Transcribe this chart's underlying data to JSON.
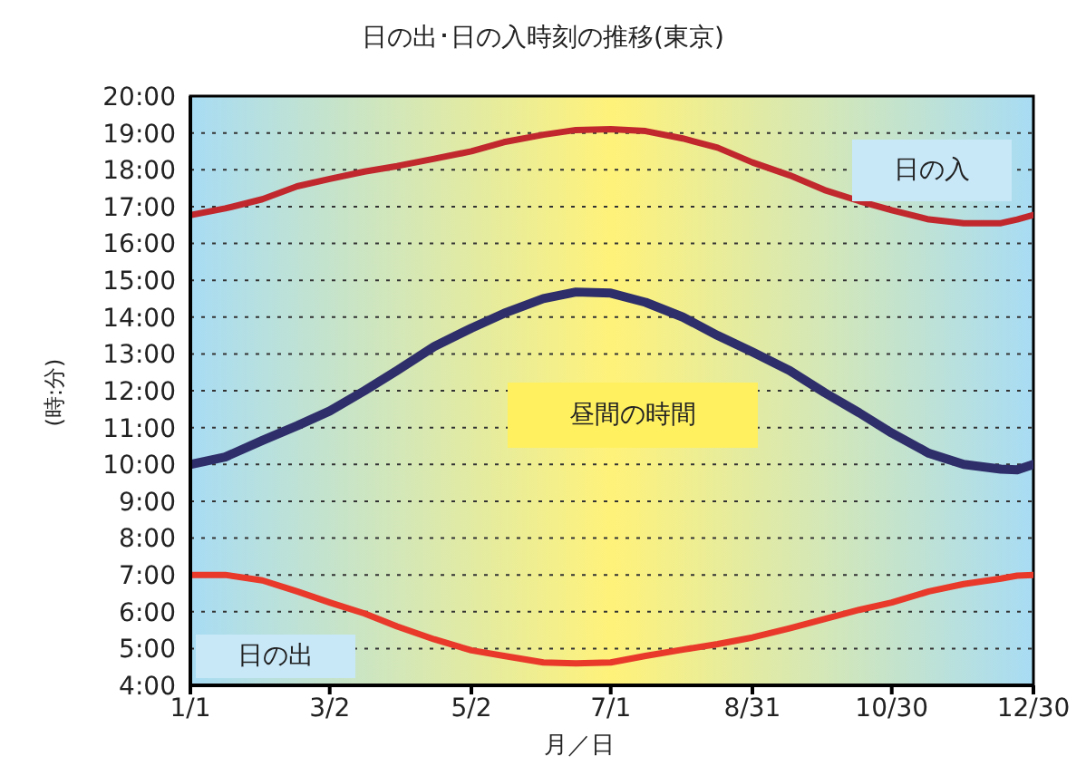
{
  "chart_data": {
    "type": "line",
    "title": "日の出･日の入時刻の推移(東京)",
    "xlabel": "月／日",
    "ylabel": "(時:分)",
    "x": [
      "--01-01",
      "--01-16",
      "--02-01",
      "--02-16",
      "--03-02",
      "--03-17",
      "--03-31",
      "--04-16",
      "--05-02",
      "--05-16",
      "--06-02",
      "--06-16",
      "--07-01",
      "--07-16",
      "--08-01",
      "--08-16",
      "--08-31",
      "--09-16",
      "--10-01",
      "--10-16",
      "--10-30",
      "--11-15",
      "--11-30",
      "--12-16",
      "--12-23",
      "--12-30"
    ],
    "series": [
      {
        "name": "日の入",
        "color": "#c0282e",
        "values": [
          16.77,
          16.95,
          17.2,
          17.55,
          17.75,
          17.95,
          18.1,
          18.3,
          18.5,
          18.75,
          18.95,
          19.08,
          19.1,
          19.05,
          18.85,
          18.6,
          18.2,
          17.85,
          17.45,
          17.15,
          16.9,
          16.65,
          16.55,
          16.55,
          16.65,
          16.77
        ]
      },
      {
        "name": "昼間の時間",
        "color": "#2e2e6a",
        "values": [
          10.0,
          10.2,
          10.65,
          11.05,
          11.45,
          12.0,
          12.55,
          13.2,
          13.7,
          14.1,
          14.5,
          14.68,
          14.65,
          14.4,
          14.0,
          13.5,
          13.05,
          12.55,
          11.95,
          11.4,
          10.85,
          10.3,
          10.0,
          9.87,
          9.85,
          10.0
        ]
      },
      {
        "name": "日の出",
        "color": "#e8392a",
        "values": [
          7.0,
          7.0,
          6.85,
          6.55,
          6.25,
          5.95,
          5.6,
          5.25,
          4.95,
          4.8,
          4.62,
          4.6,
          4.62,
          4.8,
          4.97,
          5.12,
          5.3,
          5.55,
          5.8,
          6.05,
          6.25,
          6.55,
          6.75,
          6.9,
          6.98,
          7.0
        ]
      }
    ],
    "xlim": [
      "--01-01",
      "--12-30"
    ],
    "xticks": [
      {
        "value": "--01-01",
        "label": "1/1"
      },
      {
        "value": "--03-02",
        "label": "3/2"
      },
      {
        "value": "--05-02",
        "label": "5/2"
      },
      {
        "value": "--07-01",
        "label": "7/1"
      },
      {
        "value": "--08-31",
        "label": "8/31"
      },
      {
        "value": "--10-30",
        "label": "10/30"
      },
      {
        "value": "--12-30",
        "label": "12/30"
      }
    ],
    "ylim": [
      4,
      20
    ],
    "yticks": [
      {
        "value": 4,
        "label": "4:00"
      },
      {
        "value": 5,
        "label": "5:00"
      },
      {
        "value": 6,
        "label": "6:00"
      },
      {
        "value": 7,
        "label": "7:00"
      },
      {
        "value": 8,
        "label": "8:00"
      },
      {
        "value": 9,
        "label": "9:00"
      },
      {
        "value": 10,
        "label": "10:00"
      },
      {
        "value": 11,
        "label": "11:00"
      },
      {
        "value": 12,
        "label": "12:00"
      },
      {
        "value": 13,
        "label": "13:00"
      },
      {
        "value": 14,
        "label": "14:00"
      },
      {
        "value": 15,
        "label": "15:00"
      },
      {
        "value": 16,
        "label": "16:00"
      },
      {
        "value": 17,
        "label": "17:00"
      },
      {
        "value": 18,
        "label": "18:00"
      },
      {
        "value": 19,
        "label": "19:00"
      },
      {
        "value": 20,
        "label": "20:00"
      }
    ],
    "grid": "y",
    "legend": false,
    "marker": "none",
    "line_style": "solid"
  }
}
